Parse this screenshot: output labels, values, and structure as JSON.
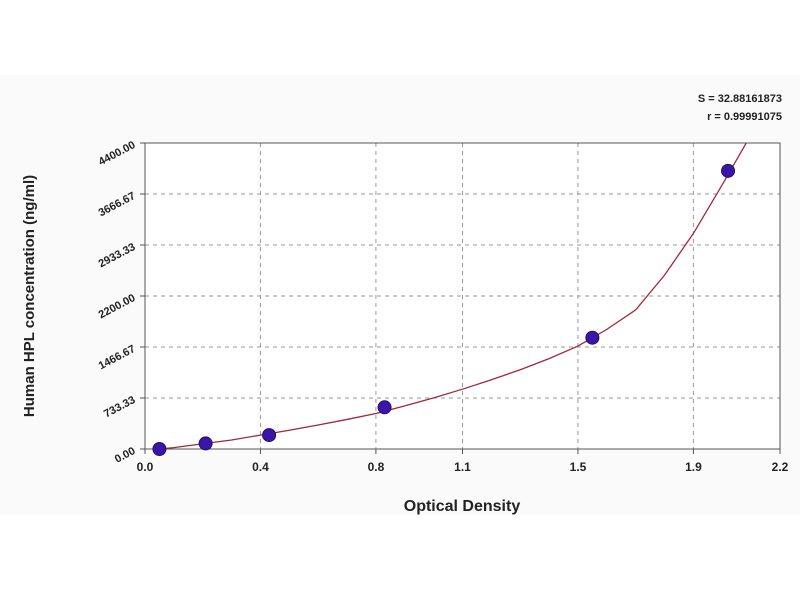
{
  "chart_data": {
    "type": "scatter",
    "xlabel": "Optical Density",
    "ylabel": "Human HPL concentration (ng/ml)",
    "xlim": [
      0.0,
      2.2
    ],
    "ylim": [
      0,
      4400
    ],
    "x_ticks": [
      0.0,
      0.4,
      0.8,
      1.1,
      1.5,
      1.9,
      2.2
    ],
    "x_tick_labels": [
      "0.0",
      "0.4",
      "0.8",
      "1.1",
      "1.5",
      "1.9",
      "2.2"
    ],
    "y_ticks": [
      0,
      733.33,
      1466.67,
      2200,
      2933.33,
      3666.67,
      4400
    ],
    "y_tick_labels": [
      "0.00",
      "733.33",
      "1466.67",
      "2200.00",
      "2933.33",
      "3666.67",
      "4400.00"
    ],
    "grid": true,
    "series": [
      {
        "points": [
          {
            "x": 0.05,
            "y": 0
          },
          {
            "x": 0.21,
            "y": 80
          },
          {
            "x": 0.43,
            "y": 200
          },
          {
            "x": 0.83,
            "y": 600
          },
          {
            "x": 1.55,
            "y": 1600
          },
          {
            "x": 2.02,
            "y": 4000
          }
        ]
      }
    ],
    "fit_curve": {
      "x": [
        0.03,
        0.1,
        0.2,
        0.3,
        0.4,
        0.5,
        0.6,
        0.7,
        0.8,
        0.9,
        1.0,
        1.1,
        1.2,
        1.3,
        1.4,
        1.5,
        1.6,
        1.7,
        1.8,
        1.9,
        2.0,
        2.09
      ],
      "y": [
        -10,
        20,
        75,
        130,
        200,
        270,
        345,
        425,
        510,
        620,
        735,
        860,
        995,
        1140,
        1300,
        1480,
        1720,
        2000,
        2500,
        3100,
        3800,
        4450
      ]
    },
    "annotations": [
      "S = 32.88161873",
      "r = 0.99991075"
    ],
    "colors": {
      "marker": "#3a16a8",
      "curve": "#a0283a",
      "grid": "#9a9a9a",
      "axis": "#555555"
    }
  }
}
